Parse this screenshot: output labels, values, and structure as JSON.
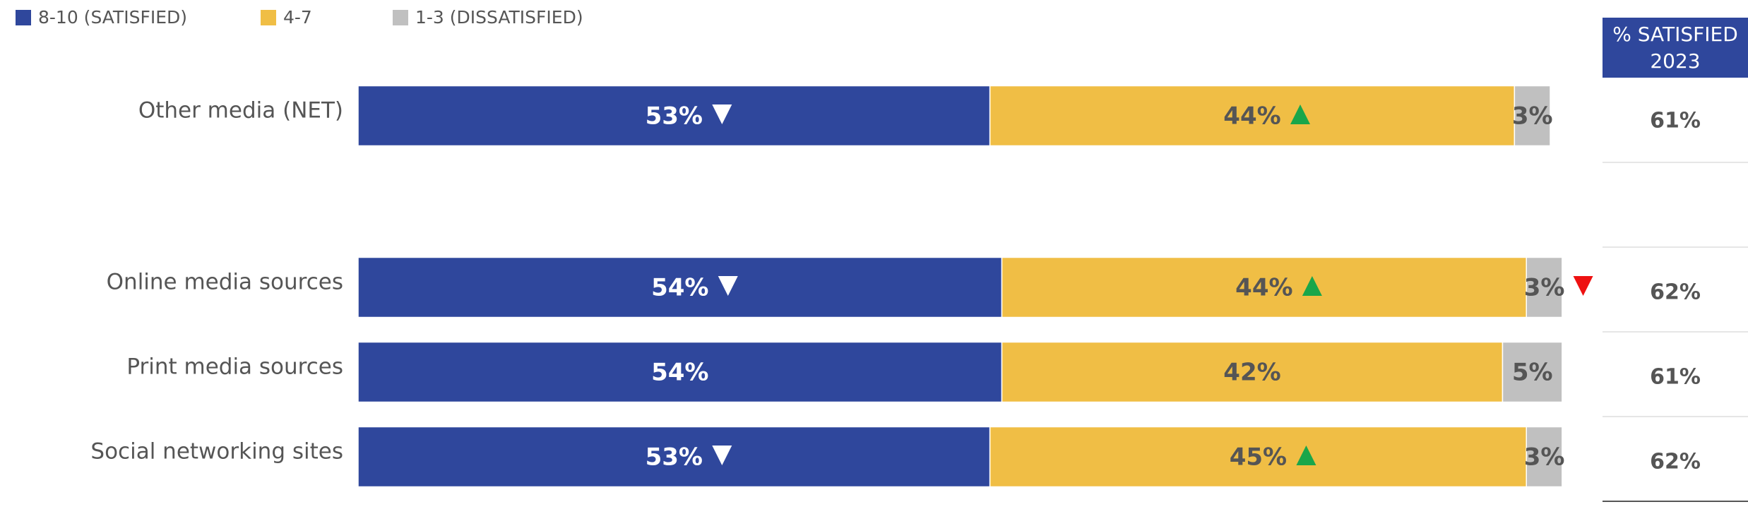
{
  "chart_data": {
    "type": "stacked-bar-horizontal",
    "categories": [
      "Other media (NET)",
      "Online media sources",
      "Print media sources",
      "Social networking sites"
    ],
    "xlim": [
      0,
      100
    ],
    "series": [
      {
        "name": "8-10 (SATISFIED)",
        "color": "#2f479c",
        "label_color": "#ffffff",
        "arrow_color": "#ffffff",
        "values": [
          53,
          54,
          54,
          53
        ],
        "value_labels": [
          "53%",
          "54%",
          "54%",
          "53%"
        ],
        "changes": [
          "down",
          "down",
          null,
          "down"
        ]
      },
      {
        "name": "4-7",
        "color": "#f0be45",
        "label_color": "#555555",
        "arrow_color": "#1aa64a",
        "values": [
          44,
          44,
          42,
          45
        ],
        "value_labels": [
          "44%",
          "44%",
          "42%",
          "45%"
        ],
        "changes": [
          "up",
          "up",
          null,
          "up"
        ]
      },
      {
        "name": "1-3 (DISSATISFIED)",
        "color": "#c0c0c0",
        "label_color": "#555555",
        "arrow_color": "#ee1111",
        "values": [
          3,
          3,
          5,
          3
        ],
        "value_labels": [
          "3%",
          "3%",
          "5%",
          "3%"
        ],
        "changes": [
          null,
          "down",
          null,
          null
        ]
      }
    ],
    "side_table": {
      "title": "% SATISFIED",
      "subtitle": "2023",
      "header_color": "#2f479c",
      "values": [
        61,
        62,
        61,
        62
      ],
      "value_labels": [
        "61%",
        "62%",
        "61%",
        "62%"
      ]
    }
  }
}
